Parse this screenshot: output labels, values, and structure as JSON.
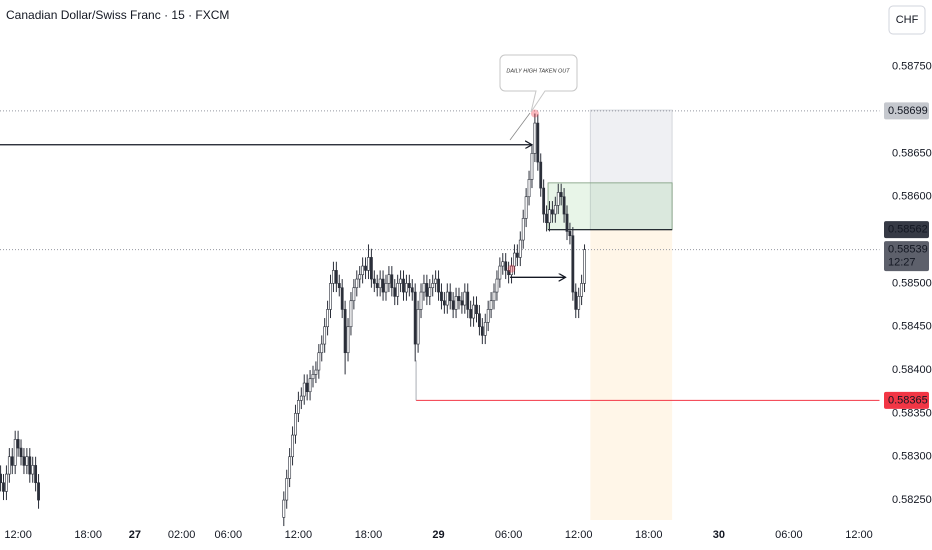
{
  "title": "Canadian Dollar/Swiss Franc · 15 · FXCM",
  "currency_button": "CHF",
  "chart_data": {
    "type": "candlestick",
    "up_color": "#ffffff",
    "down_color": "#2a2e39",
    "edge_color": "#2a2e39",
    "xlim": [
      -6.2,
      295.2
    ],
    "ylim": [
      0.58227,
      0.58827
    ],
    "xticks": [
      {
        "value": 0,
        "label": "12:00"
      },
      {
        "value": 24,
        "label": "18:00"
      },
      {
        "value": 40,
        "label": "27"
      },
      {
        "value": 56,
        "label": "02:00"
      },
      {
        "value": 72,
        "label": "06:00"
      },
      {
        "value": 96,
        "label": "12:00"
      },
      {
        "value": 120,
        "label": "18:00"
      },
      {
        "value": 144,
        "label": "29"
      },
      {
        "value": 168,
        "label": "06:00"
      },
      {
        "value": 192,
        "label": "12:00"
      },
      {
        "value": 216,
        "label": "18:00"
      },
      {
        "value": 240,
        "label": "30"
      },
      {
        "value": 264,
        "label": "06:00"
      },
      {
        "value": 288,
        "label": "12:00"
      }
    ],
    "yticks": [
      {
        "value": 0.5875,
        "label": "0.58750"
      },
      {
        "value": 0.5865,
        "label": "0.58650"
      },
      {
        "value": 0.586,
        "label": "0.58600"
      },
      {
        "value": 0.585,
        "label": "0.58500"
      },
      {
        "value": 0.5845,
        "label": "0.58450"
      },
      {
        "value": 0.584,
        "label": "0.58400"
      },
      {
        "value": 0.5835,
        "label": "0.58350"
      },
      {
        "value": 0.583,
        "label": "0.58300"
      },
      {
        "value": 0.5825,
        "label": "0.58250"
      }
    ],
    "x": [
      -6,
      -5,
      -4,
      -3,
      -2,
      -1,
      0,
      1,
      2,
      3,
      4,
      5,
      6,
      7,
      91,
      92,
      93,
      94,
      95,
      96,
      97,
      98,
      99,
      100,
      101,
      102,
      103,
      104,
      105,
      106,
      107,
      108,
      109,
      110,
      111,
      112,
      113,
      114,
      115,
      116,
      117,
      118,
      119,
      120,
      121,
      122,
      123,
      124,
      125,
      126,
      127,
      128,
      129,
      130,
      131,
      132,
      133,
      134,
      135,
      136,
      137,
      138,
      139,
      140,
      141,
      142,
      143,
      144,
      145,
      146,
      147,
      148,
      149,
      150,
      151,
      152,
      153,
      154,
      155,
      156,
      157,
      158,
      159,
      160,
      161,
      162,
      163,
      164,
      165,
      166,
      167,
      168,
      169,
      170,
      171,
      172,
      173,
      174,
      175,
      176,
      177,
      178,
      179,
      180,
      181,
      182,
      183,
      184,
      185,
      186,
      187,
      188,
      189,
      190,
      191,
      192,
      193,
      194
    ],
    "open": [
      0.5828,
      0.5827,
      0.5826,
      0.5828,
      0.583,
      0.5829,
      0.5832,
      0.5831,
      0.583,
      0.5829,
      0.583,
      0.5828,
      0.5829,
      0.5827,
      0.5823,
      0.5825,
      0.58275,
      0.583,
      0.58325,
      0.5835,
      0.58365,
      0.5837,
      0.58385,
      0.58375,
      0.5839,
      0.58395,
      0.584,
      0.5842,
      0.5843,
      0.5845,
      0.5847,
      0.585,
      0.58515,
      0.585,
      0.58495,
      0.5847,
      0.5842,
      0.5845,
      0.5848,
      0.58495,
      0.58505,
      0.5851,
      0.5852,
      0.58515,
      0.5853,
      0.58505,
      0.585,
      0.58495,
      0.58505,
      0.5849,
      0.585,
      0.5851,
      0.58495,
      0.58485,
      0.585,
      0.58505,
      0.5849,
      0.585,
      0.58495,
      0.5849,
      0.5843,
      0.5847,
      0.5849,
      0.585,
      0.58485,
      0.58495,
      0.585,
      0.58505,
      0.5849,
      0.5848,
      0.58475,
      0.5849,
      0.5848,
      0.5847,
      0.58485,
      0.5848,
      0.58475,
      0.5849,
      0.5847,
      0.5846,
      0.58475,
      0.58465,
      0.5845,
      0.5844,
      0.58455,
      0.5847,
      0.5848,
      0.5849,
      0.58505,
      0.5852,
      0.58525,
      0.58515,
      0.5851,
      0.5852,
      0.58535,
      0.5853,
      0.5855,
      0.58575,
      0.586,
      0.5862,
      0.5865,
      0.58685,
      0.5864,
      0.5861,
      0.5858,
      0.5857,
      0.58585,
      0.5858,
      0.5859,
      0.58605,
      0.586,
      0.5858,
      0.5856,
      0.58555,
      0.5849,
      0.5847,
      0.58485,
      0.585
    ],
    "close": [
      0.5827,
      0.5826,
      0.5828,
      0.583,
      0.5829,
      0.5832,
      0.5831,
      0.583,
      0.5829,
      0.583,
      0.5828,
      0.5829,
      0.5827,
      0.5825,
      0.5825,
      0.58275,
      0.583,
      0.58325,
      0.5835,
      0.58365,
      0.5837,
      0.58385,
      0.58375,
      0.5839,
      0.58395,
      0.584,
      0.5842,
      0.5843,
      0.5845,
      0.5847,
      0.585,
      0.58515,
      0.585,
      0.58495,
      0.5847,
      0.5842,
      0.5845,
      0.5848,
      0.58495,
      0.58505,
      0.5851,
      0.5852,
      0.58515,
      0.5853,
      0.58505,
      0.585,
      0.58495,
      0.58505,
      0.5849,
      0.585,
      0.5851,
      0.58495,
      0.58485,
      0.585,
      0.58505,
      0.5849,
      0.585,
      0.58495,
      0.5849,
      0.5843,
      0.5847,
      0.5849,
      0.585,
      0.58485,
      0.58495,
      0.585,
      0.58505,
      0.5849,
      0.5848,
      0.58475,
      0.5849,
      0.5848,
      0.5847,
      0.58485,
      0.5848,
      0.58475,
      0.5849,
      0.5847,
      0.5846,
      0.58475,
      0.58465,
      0.5845,
      0.5844,
      0.58455,
      0.5847,
      0.5848,
      0.5849,
      0.58505,
      0.5852,
      0.58525,
      0.58515,
      0.5851,
      0.5852,
      0.58535,
      0.5853,
      0.5855,
      0.58575,
      0.586,
      0.5862,
      0.5865,
      0.58685,
      0.5864,
      0.5861,
      0.5858,
      0.5857,
      0.58585,
      0.5858,
      0.5859,
      0.58605,
      0.586,
      0.5858,
      0.5856,
      0.58555,
      0.5849,
      0.5847,
      0.58485,
      0.585,
      0.58539
    ],
    "high": [
      0.5829,
      0.5828,
      0.5829,
      0.5831,
      0.5831,
      0.5833,
      0.5833,
      0.5832,
      0.5831,
      0.5831,
      0.5831,
      0.583,
      0.583,
      0.5828,
      0.5826,
      0.58285,
      0.5831,
      0.58335,
      0.5836,
      0.58375,
      0.5838,
      0.58395,
      0.58395,
      0.584,
      0.58405,
      0.5841,
      0.5843,
      0.5844,
      0.5846,
      0.5848,
      0.5851,
      0.58525,
      0.58525,
      0.5851,
      0.58505,
      0.5848,
      0.5846,
      0.5849,
      0.58505,
      0.58515,
      0.5852,
      0.5853,
      0.5853,
      0.58545,
      0.5854,
      0.58515,
      0.5851,
      0.58515,
      0.58515,
      0.5851,
      0.5852,
      0.5852,
      0.58505,
      0.5851,
      0.58515,
      0.58515,
      0.5851,
      0.5851,
      0.58505,
      0.585,
      0.5848,
      0.585,
      0.5851,
      0.5851,
      0.58505,
      0.5851,
      0.58515,
      0.58515,
      0.585,
      0.5849,
      0.585,
      0.585,
      0.5849,
      0.58495,
      0.58495,
      0.5849,
      0.585,
      0.585,
      0.5848,
      0.58485,
      0.58485,
      0.58475,
      0.5846,
      0.58465,
      0.5848,
      0.5849,
      0.585,
      0.58515,
      0.5853,
      0.58535,
      0.58535,
      0.58525,
      0.5853,
      0.58545,
      0.58545,
      0.5856,
      0.58585,
      0.5861,
      0.5863,
      0.5866,
      0.58696,
      0.58695,
      0.5865,
      0.5862,
      0.5859,
      0.58595,
      0.58595,
      0.586,
      0.58615,
      0.58615,
      0.5861,
      0.5859,
      0.5857,
      0.58565,
      0.585,
      0.58495,
      0.5851,
      0.58545
    ],
    "low": [
      0.5826,
      0.5825,
      0.5825,
      0.5827,
      0.5828,
      0.5828,
      0.583,
      0.5829,
      0.5828,
      0.5828,
      0.5827,
      0.5827,
      0.5826,
      0.5824,
      0.5822,
      0.5824,
      0.58265,
      0.5829,
      0.58315,
      0.5834,
      0.58355,
      0.5836,
      0.58365,
      0.58365,
      0.5838,
      0.58385,
      0.5839,
      0.5841,
      0.5842,
      0.5844,
      0.5846,
      0.5849,
      0.5849,
      0.58485,
      0.5846,
      0.58395,
      0.5841,
      0.5844,
      0.5847,
      0.58485,
      0.58495,
      0.585,
      0.58505,
      0.58505,
      0.58495,
      0.5849,
      0.58485,
      0.58485,
      0.5848,
      0.5848,
      0.5849,
      0.58485,
      0.58475,
      0.58475,
      0.5849,
      0.5848,
      0.5848,
      0.58485,
      0.5848,
      0.5841,
      0.5842,
      0.5846,
      0.5848,
      0.58475,
      0.58475,
      0.58485,
      0.5849,
      0.5848,
      0.5847,
      0.58465,
      0.58465,
      0.5847,
      0.5846,
      0.5846,
      0.5847,
      0.58465,
      0.58465,
      0.5846,
      0.5845,
      0.5845,
      0.58455,
      0.5844,
      0.5843,
      0.5843,
      0.58445,
      0.5846,
      0.5847,
      0.5848,
      0.58495,
      0.5851,
      0.58505,
      0.585,
      0.585,
      0.5851,
      0.5852,
      0.5852,
      0.5854,
      0.58565,
      0.5859,
      0.5861,
      0.5864,
      0.5863,
      0.586,
      0.5857,
      0.5856,
      0.5856,
      0.5857,
      0.5857,
      0.5858,
      0.5859,
      0.5857,
      0.5855,
      0.58545,
      0.5848,
      0.5846,
      0.5846,
      0.58475,
      0.5849
    ],
    "high_line": 0.58699,
    "last_price": {
      "value": 0.58539,
      "countdown": "12:27"
    },
    "alert_line": {
      "value": 0.58365,
      "x_start": 136.3,
      "color": "#f23645"
    },
    "position": {
      "entry": 0.58562,
      "stop": 0.587,
      "x": [
        196,
        224
      ]
    },
    "zone": {
      "x": [
        181.5,
        224
      ],
      "price": [
        0.58562,
        0.58616
      ]
    },
    "arrows": [
      {
        "x": [
          -6.2,
          176
        ],
        "price": 0.5866
      },
      {
        "x": [
          168.5,
          187.5
        ],
        "price": 0.58507
      }
    ],
    "markers": [
      {
        "x": 177,
        "price": 0.58696
      },
      {
        "x": 169,
        "price": 0.58517
      }
    ],
    "callout": "DAILY HIGH TAKEN OUT"
  }
}
